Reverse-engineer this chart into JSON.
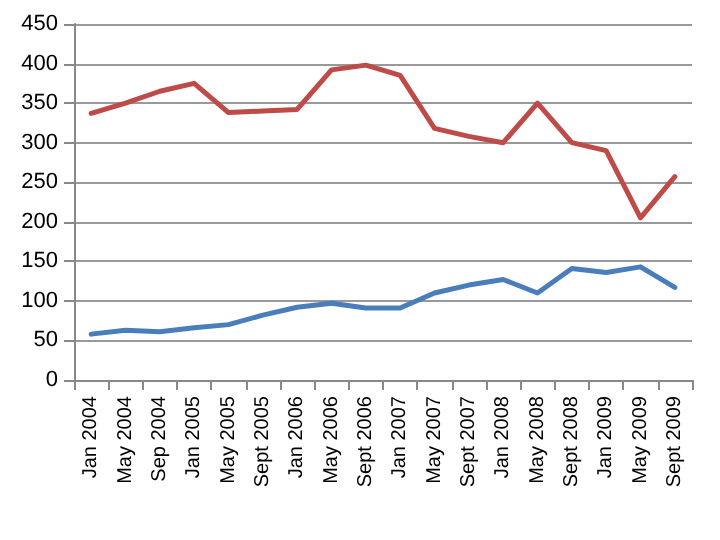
{
  "chart_data": {
    "type": "line",
    "categories": [
      "Jan 2004",
      "May 2004",
      "Sep 2004",
      "Jan 2005",
      "May 2005",
      "Sept 2005",
      "Jan 2006",
      "May 2006",
      "Sept 2006",
      "Jan 2007",
      "May 2007",
      "Sept 2007",
      "Jan 2008",
      "May 2008",
      "Sept 2008",
      "Jan 2009",
      "May 2009",
      "Sept 2009"
    ],
    "series": [
      {
        "color": "#be4b48",
        "values": [
          337,
          350,
          365,
          375,
          338,
          340,
          342,
          392,
          398,
          385,
          318,
          308,
          300,
          350,
          300,
          290,
          205,
          257
        ]
      },
      {
        "color": "#4a7ebb",
        "values": [
          58,
          63,
          61,
          66,
          70,
          82,
          92,
          97,
          91,
          91,
          110,
          120,
          127,
          110,
          141,
          136,
          143,
          117
        ]
      }
    ],
    "ylim": [
      0,
      450
    ],
    "yticks": [
      0,
      50,
      100,
      150,
      200,
      250,
      300,
      350,
      400,
      450
    ],
    "grid": "y",
    "marker": "none",
    "line_style": "solid"
  }
}
